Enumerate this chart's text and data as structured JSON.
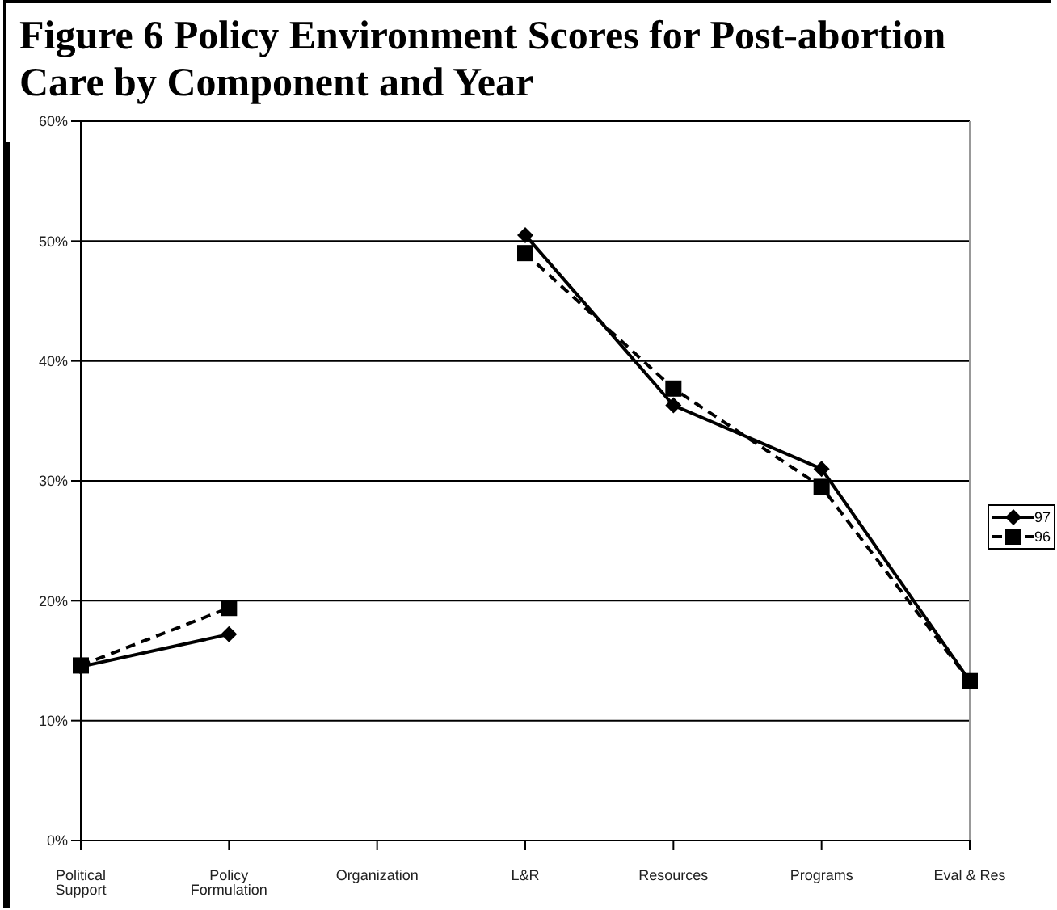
{
  "chart_data": {
    "type": "line",
    "title": "Figure 6 Policy Environment Scores for Post-abortion Care by Component and Year",
    "categories": [
      "Political Support",
      "Policy Formulation",
      "Organization",
      "L&R",
      "Resources",
      "Programs",
      "Eval & Res"
    ],
    "series": [
      {
        "name": "97",
        "color": "#000000",
        "marker": "diamond",
        "line_style": "solid",
        "values": [
          14.5,
          17.2,
          null,
          50.5,
          36.3,
          31.0,
          13.3
        ]
      },
      {
        "name": "96",
        "color": "#000000",
        "marker": "square",
        "line_style": "dashed",
        "values": [
          14.6,
          19.4,
          null,
          49.0,
          37.7,
          29.5,
          13.3
        ]
      }
    ],
    "ylim": [
      0,
      60
    ],
    "yticks": [
      {
        "value": 0,
        "label": "0%"
      },
      {
        "value": 10,
        "label": "10%"
      },
      {
        "value": 20,
        "label": "20%"
      },
      {
        "value": 30,
        "label": "30%"
      },
      {
        "value": 40,
        "label": "40%"
      },
      {
        "value": 50,
        "label": "50%"
      },
      {
        "value": 60,
        "label": "60%"
      }
    ],
    "grid": "y",
    "legend": "right"
  }
}
